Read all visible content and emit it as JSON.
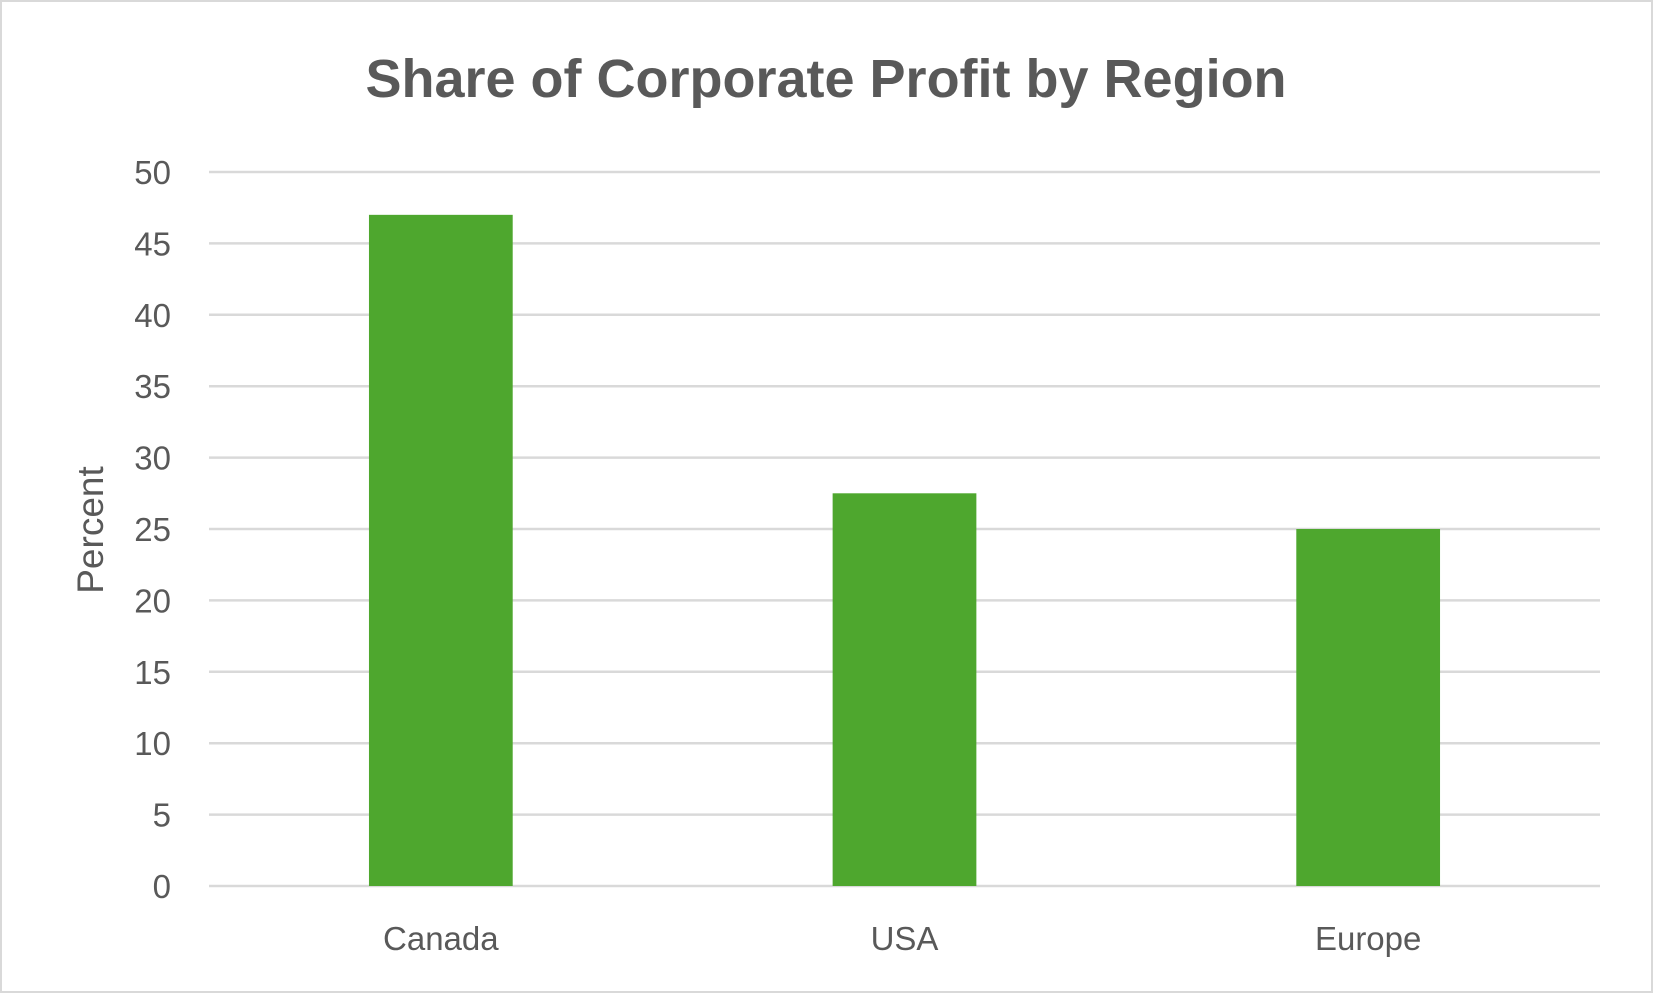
{
  "chart_data": {
    "type": "bar",
    "title": "Share of Corporate Profit by Region",
    "xlabel": "",
    "ylabel": "Percent",
    "categories": [
      "Canada",
      "USA",
      "Europe"
    ],
    "values": [
      47,
      27.5,
      25
    ],
    "ylim": [
      0,
      50
    ],
    "yticks": [
      0,
      5,
      10,
      15,
      20,
      25,
      30,
      35,
      40,
      45,
      50
    ],
    "grid": true,
    "legend": "none",
    "bar_color": "#4EA72E"
  }
}
